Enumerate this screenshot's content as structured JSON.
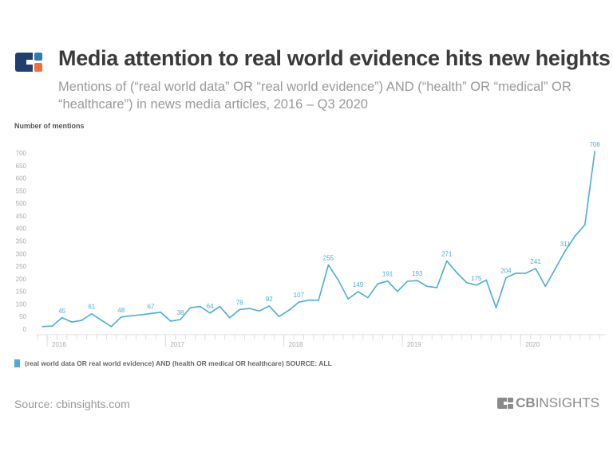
{
  "header": {
    "title": "Media attention to real world evidence hits new heights",
    "subtitle": "Mentions of (“real world data” OR “real world evidence”) AND (“health” OR “medical” OR “healthcare”) in news media articles, 2016 – Q3 2020"
  },
  "chart_data": {
    "type": "line",
    "ylabel": "Number of mentions",
    "ylim": [
      0,
      700
    ],
    "yticks": [
      0,
      50,
      100,
      150,
      200,
      250,
      300,
      350,
      400,
      450,
      500,
      550,
      600,
      650,
      700
    ],
    "x_year_labels": [
      "2016",
      "2017",
      "2018",
      "2019",
      "2020"
    ],
    "x_range": "monthly, Jan 2016 – Sep 2020",
    "grid": false,
    "legend_position": "bottom-left",
    "color": "#4bacd6",
    "series": [
      {
        "name": "(real world data OR real world evidence) AND (health OR medical OR healthcare) SOURCE: ALL",
        "values": [
          10,
          12,
          45,
          28,
          35,
          61,
          35,
          10,
          48,
          53,
          57,
          62,
          67,
          32,
          38,
          85,
          90,
          64,
          90,
          45,
          78,
          82,
          72,
          92,
          50,
          75,
          107,
          115,
          115,
          255,
          195,
          120,
          149,
          125,
          180,
          191,
          150,
          190,
          193,
          170,
          165,
          271,
          225,
          185,
          175,
          195,
          85,
          204,
          222,
          222,
          241,
          170,
          240,
          311,
          370,
          415,
          706
        ],
        "labeled_points": [
          45,
          61,
          48,
          67,
          38,
          64,
          78,
          92,
          107,
          255,
          149,
          191,
          193,
          271,
          175,
          204,
          241,
          311,
          706
        ]
      }
    ]
  },
  "footer": {
    "source": "Source: cbinsights.com",
    "brand_bold": "CB",
    "brand_light": "INSIGHTS"
  },
  "colors": {
    "logo_navy": "#1f3f6e",
    "logo_blue": "#2a7ab8",
    "logo_orange": "#f26b3a",
    "line": "#4bacd6"
  }
}
